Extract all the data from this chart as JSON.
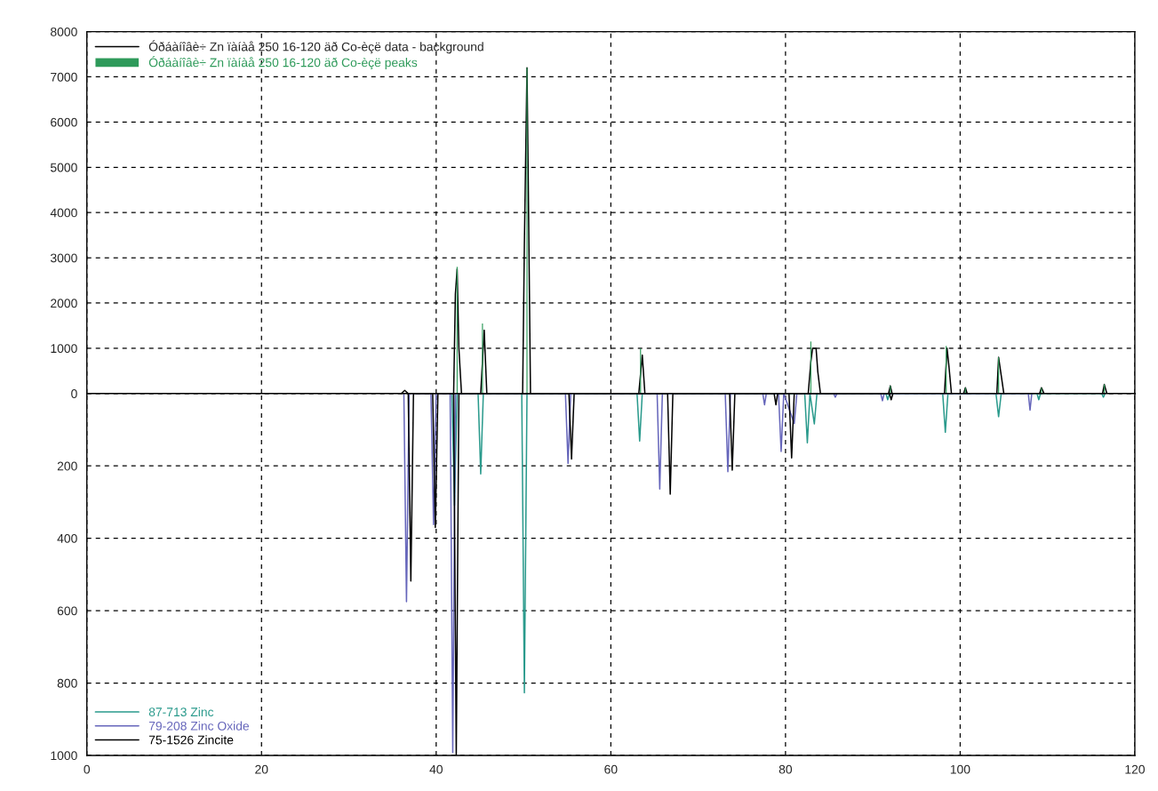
{
  "chart_data": [
    {
      "type": "line",
      "legend": "top left",
      "grid": true,
      "tick_labels": "y",
      "xlim": [
        0,
        120
      ],
      "ylim": [
        0,
        8000
      ],
      "yticks": [
        0,
        1000,
        2000,
        3000,
        4000,
        5000,
        6000,
        7000,
        8000
      ],
      "series": [
        {
          "name": "Óðáàíîâè÷ Zn ïàíàå 250 16-120 äð Co-èçë data - background",
          "color": "#000000",
          "x": [
            35.0,
            36.0,
            36.4,
            36.8,
            42.0,
            42.2,
            42.4,
            42.6,
            42.9,
            45.1,
            45.5,
            45.8,
            49.9,
            50.1,
            50.4,
            50.5,
            50.8,
            63.2,
            63.6,
            63.9,
            82.6,
            82.9,
            83.1,
            83.5,
            83.7,
            84.0,
            91.8,
            92.0,
            92.2,
            98.2,
            98.5,
            98.7,
            99.0,
            100.4,
            100.6,
            100.8,
            104.2,
            104.4,
            104.7,
            105.0,
            109.1,
            109.3,
            109.6,
            116.3,
            116.5,
            116.8,
            118.5
          ],
          "values": [
            0,
            0,
            70,
            0,
            0,
            2200,
            2750,
            1000,
            0,
            0,
            1400,
            0,
            0,
            3300,
            7200,
            5500,
            0,
            0,
            850,
            0,
            0,
            700,
            1000,
            1000,
            480,
            0,
            0,
            170,
            0,
            0,
            1000,
            630,
            0,
            0,
            130,
            0,
            0,
            800,
            400,
            0,
            0,
            130,
            0,
            0,
            200,
            0,
            0
          ]
        },
        {
          "name": "Óðáàíîâè÷ Zn ïàíàå 250 16-120 äð Co-èçë peaks",
          "color": "#2e9a5a",
          "type": "bar",
          "x": [
            42.4,
            45.3,
            50.4,
            63.4,
            82.9,
            92.0,
            98.4,
            100.6,
            104.4,
            109.3,
            116.5
          ],
          "values": [
            2800,
            1550,
            7200,
            1000,
            1150,
            170,
            1050,
            130,
            800,
            130,
            200
          ]
        }
      ]
    },
    {
      "type": "line",
      "legend": "bottom left",
      "grid": true,
      "xlim": [
        0,
        120
      ],
      "xticks": [
        0,
        20,
        40,
        60,
        80,
        100,
        120
      ],
      "ylim": [
        1000,
        0
      ],
      "yticks": [
        {
          "value": 0,
          "label": null
        },
        200,
        400,
        600,
        800,
        1000
      ],
      "series": [
        {
          "name": "87-713 Zinc",
          "color": "#2a9a8c",
          "x": [
            41.8,
            42.1,
            42.4,
            44.8,
            45.1,
            45.4,
            49.8,
            50.1,
            50.4,
            63.0,
            63.3,
            63.6,
            82.2,
            82.5,
            82.8,
            83.3,
            83.6,
            91.5,
            91.7,
            91.9,
            98.0,
            98.3,
            98.6,
            104.1,
            104.4,
            104.7,
            108.8,
            109.0,
            109.2,
            116.2,
            116.4,
            116.6
          ],
          "values": [
            0,
            309,
            0,
            0,
            222,
            0,
            0,
            827,
            0,
            0,
            131,
            0,
            0,
            136,
            0,
            84,
            0,
            0,
            17,
            0,
            0,
            107,
            0,
            0,
            64,
            0,
            0,
            17,
            0,
            0,
            10,
            0
          ]
        },
        {
          "name": "79-208 Zinc Oxide",
          "color": "#6666bb",
          "x": [
            36.3,
            36.6,
            36.9,
            39.4,
            39.7,
            40.0,
            41.6,
            41.9,
            42.2,
            54.8,
            55.1,
            55.4,
            65.3,
            65.6,
            65.9,
            73.1,
            73.4,
            73.7,
            77.4,
            77.6,
            77.8,
            79.2,
            79.5,
            79.8,
            81.0,
            81.3,
            85.5,
            85.7,
            85.9,
            90.9,
            91.1,
            91.3,
            107.8,
            108.0,
            108.2
          ],
          "values": [
            0,
            575,
            0,
            0,
            362,
            0,
            0,
            992,
            0,
            0,
            193,
            0,
            0,
            264,
            0,
            0,
            216,
            0,
            0,
            31,
            0,
            0,
            160,
            0,
            83,
            0,
            0,
            10,
            0,
            0,
            20,
            0,
            0,
            46,
            0
          ]
        },
        {
          "name": "75-1526 Zincite",
          "color": "#000000",
          "x": [
            36.8,
            37.1,
            37.4,
            39.6,
            39.9,
            40.2,
            42.0,
            42.3,
            42.6,
            55.2,
            55.5,
            55.8,
            66.5,
            66.8,
            67.1,
            73.6,
            73.9,
            74.2,
            78.7,
            78.9,
            79.1,
            80.4,
            80.7,
            81.0,
            91.9,
            92.1,
            92.3
          ],
          "values": [
            0,
            518,
            0,
            0,
            370,
            0,
            0,
            1000,
            0,
            0,
            181,
            0,
            0,
            278,
            0,
            0,
            212,
            0,
            0,
            31,
            0,
            0,
            178,
            0,
            0,
            17,
            0
          ]
        }
      ]
    }
  ]
}
